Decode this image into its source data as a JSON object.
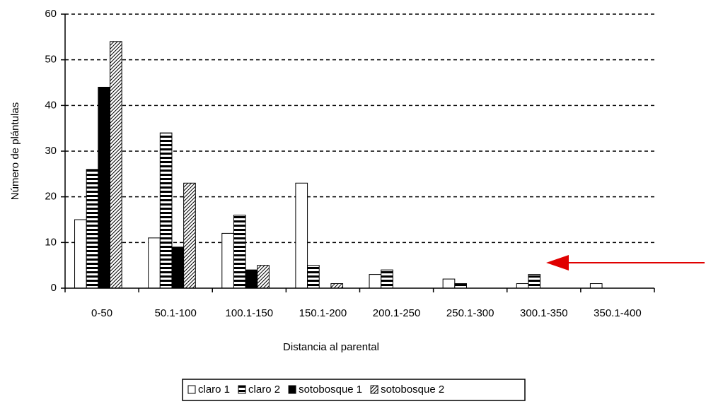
{
  "chart_data": {
    "type": "bar",
    "categories": [
      "0-50",
      "50.1-100",
      "100.1-150",
      "150.1-200",
      "200.1-250",
      "250.1-300",
      "300.1-350",
      "350.1-400"
    ],
    "series": [
      {
        "name": "claro 1",
        "color": "#ffffff",
        "pattern": "solid",
        "values": [
          15,
          11,
          12,
          23,
          3,
          2,
          1,
          1
        ]
      },
      {
        "name": "claro 2",
        "color": "#000000",
        "pattern": "horizontal-stripes",
        "values": [
          26,
          34,
          16,
          5,
          4,
          1,
          3,
          0
        ]
      },
      {
        "name": "sotobosque 1",
        "color": "#000000",
        "pattern": "solid",
        "values": [
          44,
          9,
          4,
          0,
          0,
          0,
          0,
          0
        ]
      },
      {
        "name": "sotobosque 2",
        "color": "#000000",
        "pattern": "diagonal-hatch",
        "values": [
          54,
          23,
          5,
          1,
          0,
          0,
          0,
          0
        ]
      }
    ],
    "x_label": "Distancia al parental",
    "y_label": "Número de plántulas",
    "ylim": [
      0,
      60
    ],
    "yticks": [
      0,
      10,
      20,
      30,
      40,
      50,
      60
    ],
    "grid": true,
    "legend": "bottom"
  }
}
